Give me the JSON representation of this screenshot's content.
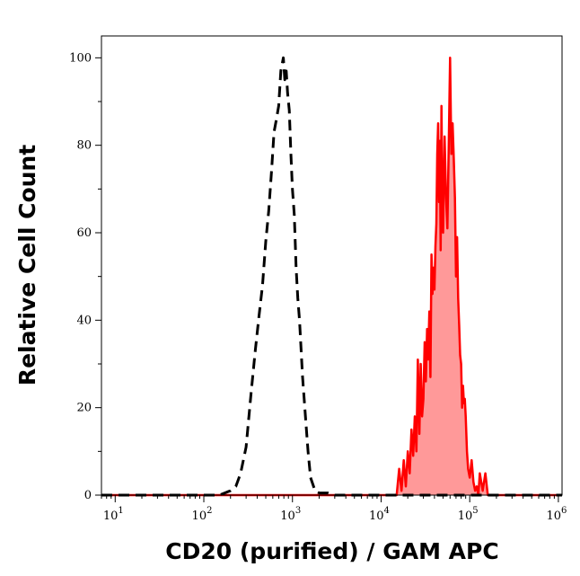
{
  "chart_data": {
    "type": "area",
    "xlabel": "CD20 (purified) / GAM APC",
    "ylabel": "Relative Cell Count",
    "x_scale": "log",
    "xlim": [
      7,
      1100000
    ],
    "ylim": [
      0,
      105
    ],
    "x_ticks": [
      {
        "value": 10,
        "base": "10",
        "exp": "1"
      },
      {
        "value": 100,
        "base": "10",
        "exp": "2"
      },
      {
        "value": 1000,
        "base": "10",
        "exp": "3"
      },
      {
        "value": 10000,
        "base": "10",
        "exp": "4"
      },
      {
        "value": 100000,
        "base": "10",
        "exp": "5"
      },
      {
        "value": 1000000,
        "base": "10",
        "exp": "6"
      }
    ],
    "y_ticks": [
      0,
      20,
      40,
      60,
      80,
      100
    ],
    "grid": false,
    "series": [
      {
        "style": "dashed",
        "color": "#000000",
        "fill": "none",
        "x": [
          7,
          150,
          200,
          230,
          260,
          300,
          340,
          380,
          420,
          460,
          500,
          540,
          580,
          620,
          660,
          700,
          740,
          790,
          820,
          850,
          880,
          920,
          960,
          1000,
          1050,
          1100,
          1150,
          1200,
          1300,
          1400,
          1500,
          1600,
          1800,
          2000,
          2500,
          3000,
          1100000
        ],
        "y": [
          0,
          0,
          1,
          2,
          5,
          11,
          23,
          33,
          41,
          48,
          58,
          65,
          74,
          83,
          86,
          89,
          97,
          100,
          95,
          97,
          92,
          88,
          78,
          70,
          64,
          52,
          45,
          40,
          27,
          18,
          10,
          4,
          1,
          0.5,
          0.5,
          0,
          0
        ]
      },
      {
        "style": "solid",
        "color": "#ff0000",
        "fill": "#ff9999",
        "x": [
          7,
          15000,
          16000,
          17000,
          18000,
          19000,
          20000,
          21000,
          22000,
          23000,
          24000,
          25000,
          26000,
          27000,
          28000,
          29000,
          30000,
          31000,
          32000,
          33000,
          34000,
          35000,
          36000,
          37000,
          38000,
          39000,
          40000,
          41000,
          42000,
          43000,
          44000,
          45000,
          46000,
          47000,
          48000,
          49000,
          50000,
          52000,
          54000,
          56000,
          58000,
          60000,
          62000,
          64000,
          66000,
          68000,
          70000,
          72000,
          74000,
          76000,
          78000,
          80000,
          82000,
          84000,
          86000,
          88000,
          90000,
          93000,
          96000,
          100000,
          105000,
          110000,
          115000,
          120000,
          125000,
          130000,
          140000,
          150000,
          160000,
          170000,
          180000,
          190000,
          200000,
          220000,
          240000,
          260000,
          280000,
          300000,
          1100000
        ],
        "y": [
          0,
          0,
          6,
          1,
          8,
          2,
          10,
          5,
          15,
          9,
          18,
          10,
          31,
          14,
          30,
          18,
          22,
          35,
          26,
          38,
          31,
          42,
          27,
          55,
          46,
          52,
          47,
          57,
          62,
          78,
          85,
          67,
          81,
          56,
          89,
          69,
          60,
          82,
          68,
          61,
          80,
          100,
          78,
          85,
          77,
          68,
          50,
          59,
          45,
          39,
          32,
          30,
          20,
          25,
          21,
          22,
          18,
          10,
          6,
          4,
          8,
          3,
          1,
          2,
          0,
          5,
          1,
          5,
          0,
          0,
          0,
          0,
          0,
          0,
          0,
          0,
          0,
          0,
          0
        ]
      }
    ]
  }
}
